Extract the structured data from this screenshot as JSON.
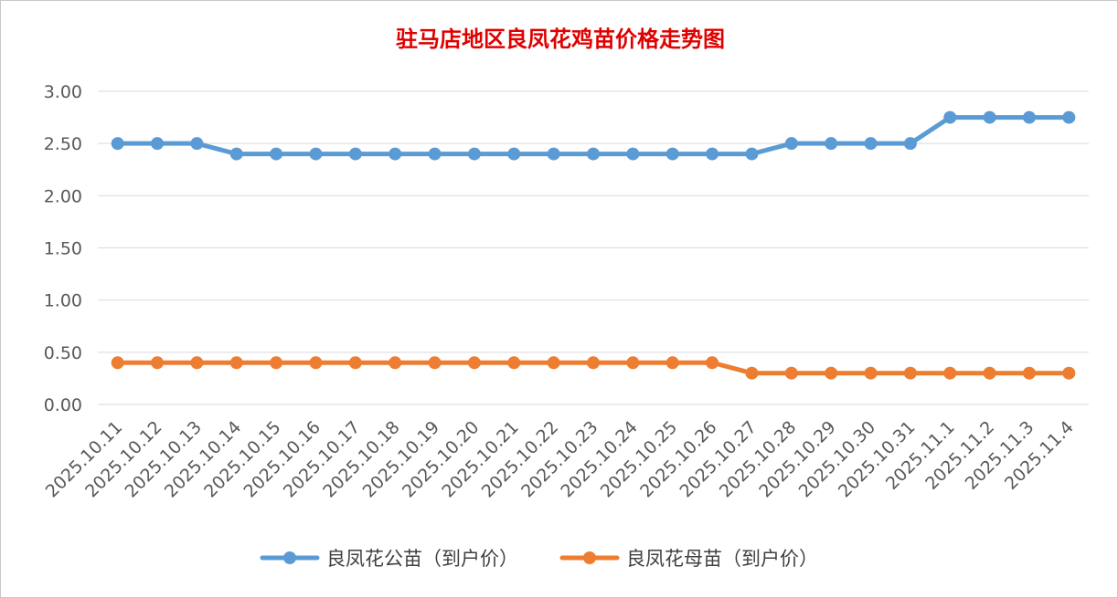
{
  "chart_data": {
    "type": "line",
    "title": "驻马店地区良凤花鸡苗价格走势图",
    "xlabel": "",
    "ylabel": "",
    "categories": [
      "2025.10.11",
      "2025.10.12",
      "2025.10.13",
      "2025.10.14",
      "2025.10.15",
      "2025.10.16",
      "2025.10.17",
      "2025.10.18",
      "2025.10.19",
      "2025.10.20",
      "2025.10.21",
      "2025.10.22",
      "2025.10.23",
      "2025.10.24",
      "2025.10.25",
      "2025.10.26",
      "2025.10.27",
      "2025.10.28",
      "2025.10.29",
      "2025.10.30",
      "2025.10.31",
      "2025.11.1",
      "2025.11.2",
      "2025.11.3",
      "2025.11.4"
    ],
    "ylim": [
      0,
      3
    ],
    "yticks": [
      "0.00",
      "0.50",
      "1.00",
      "1.50",
      "2.00",
      "2.50",
      "3.00"
    ],
    "grid": true,
    "legend_position": "bottom",
    "series": [
      {
        "name": "良凤花公苗（到户价）",
        "color": "#5b9bd5",
        "values": [
          2.5,
          2.5,
          2.5,
          2.4,
          2.4,
          2.4,
          2.4,
          2.4,
          2.4,
          2.4,
          2.4,
          2.4,
          2.4,
          2.4,
          2.4,
          2.4,
          2.4,
          2.5,
          2.5,
          2.5,
          2.5,
          2.75,
          2.75,
          2.75,
          2.75
        ]
      },
      {
        "name": "良凤花母苗（到户价）",
        "color": "#ed7d31",
        "values": [
          0.4,
          0.4,
          0.4,
          0.4,
          0.4,
          0.4,
          0.4,
          0.4,
          0.4,
          0.4,
          0.4,
          0.4,
          0.4,
          0.4,
          0.4,
          0.4,
          0.3,
          0.3,
          0.3,
          0.3,
          0.3,
          0.3,
          0.3,
          0.3,
          0.3
        ]
      }
    ]
  }
}
